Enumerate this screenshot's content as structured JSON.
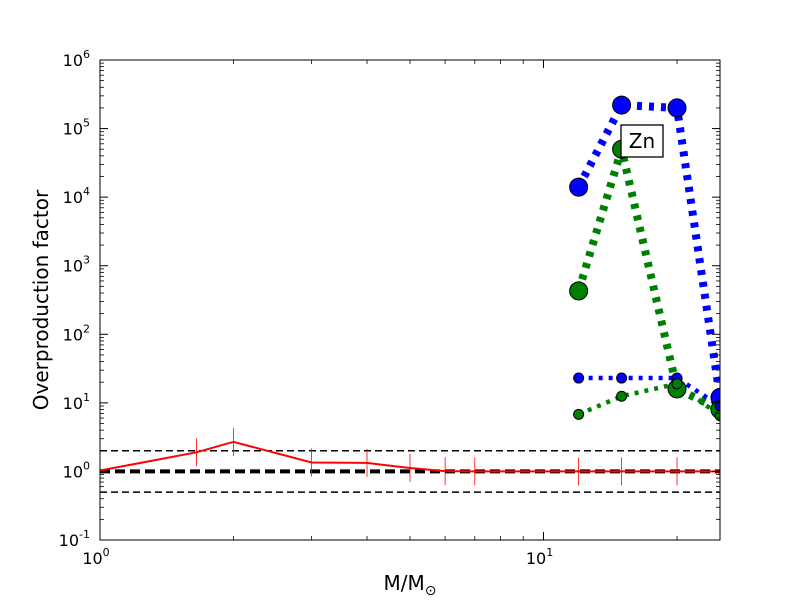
{
  "chart_data": {
    "type": "line",
    "xscale": "log",
    "yscale": "log",
    "xlim": [
      1,
      25
    ],
    "ylim": [
      0.1,
      1000000
    ],
    "xlabel_main": "M/M",
    "xlabel_sub": "⊙",
    "ylabel": "Overproduction factor",
    "annotation": "Zn",
    "x_ticks": [
      {
        "value": 1,
        "base": "10",
        "exp": "0"
      },
      {
        "value": 10,
        "base": "10",
        "exp": "1"
      }
    ],
    "y_ticks": [
      {
        "value": 0.1,
        "base": "10",
        "exp": "-1"
      },
      {
        "value": 1,
        "base": "10",
        "exp": "0"
      },
      {
        "value": 10,
        "base": "10",
        "exp": "1"
      },
      {
        "value": 100,
        "base": "10",
        "exp": "2"
      },
      {
        "value": 1000,
        "base": "10",
        "exp": "3"
      },
      {
        "value": 10000,
        "base": "10",
        "exp": "4"
      },
      {
        "value": 100000,
        "base": "10",
        "exp": "5"
      },
      {
        "value": 1000000,
        "base": "10",
        "exp": "6"
      }
    ],
    "reference_lines": [
      {
        "y": 2,
        "style": "dashed-thin",
        "color": "#000000"
      },
      {
        "y": 1,
        "style": "dashed-thick",
        "color": "#000000"
      },
      {
        "y": 0.5,
        "style": "dashed-thin",
        "color": "#000000"
      }
    ],
    "series": [
      {
        "color": "#ff0000",
        "style": "solid-markers-bar",
        "points": [
          {
            "x": 1.0,
            "y": 1.03
          },
          {
            "x": 1.65,
            "y": 1.9
          },
          {
            "x": 2.0,
            "y": 2.7
          },
          {
            "x": 3.0,
            "y": 1.35
          },
          {
            "x": 4.0,
            "y": 1.33
          },
          {
            "x": 5.0,
            "y": 1.12
          },
          {
            "x": 6.0,
            "y": 1.01
          },
          {
            "x": 7.0,
            "y": 1.0
          },
          {
            "x": 12.0,
            "y": 1.0
          },
          {
            "x": 15.0,
            "y": 1.0
          },
          {
            "x": 20.0,
            "y": 1.0
          },
          {
            "x": 25.0,
            "y": 1.0
          }
        ]
      },
      {
        "color": "#0000ff",
        "style": "dotted-thick",
        "points": [
          {
            "x": 12.0,
            "y": 14000
          },
          {
            "x": 15.0,
            "y": 220000
          },
          {
            "x": 20.0,
            "y": 200000
          },
          {
            "x": 25.0,
            "y": 12
          }
        ]
      },
      {
        "color": "#008000",
        "style": "dotted-thick",
        "points": [
          {
            "x": 12.0,
            "y": 430
          },
          {
            "x": 15.0,
            "y": 50000
          },
          {
            "x": 20.0,
            "y": 16
          },
          {
            "x": 25.0,
            "y": 8
          }
        ]
      },
      {
        "color": "#0000ff",
        "style": "dotted-thin",
        "points": [
          {
            "x": 12.0,
            "y": 23
          },
          {
            "x": 15.0,
            "y": 23
          },
          {
            "x": 20.0,
            "y": 23
          },
          {
            "x": 25.0,
            "y": 9
          }
        ]
      },
      {
        "color": "#008000",
        "style": "dotted-thin",
        "points": [
          {
            "x": 12.0,
            "y": 6.8
          },
          {
            "x": 15.0,
            "y": 12.5
          },
          {
            "x": 20.0,
            "y": 19
          },
          {
            "x": 25.0,
            "y": 6.5
          }
        ]
      }
    ]
  }
}
